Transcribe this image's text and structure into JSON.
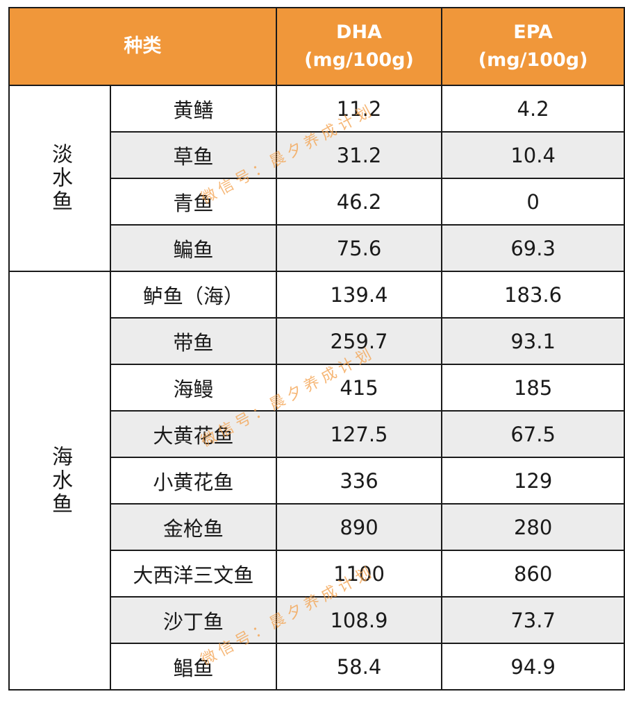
{
  "header": {
    "category": "种类",
    "dha_line1": "DHA",
    "dha_line2": "(mg/100g)",
    "epa_line1": "EPA",
    "epa_line2": "(mg/100g)"
  },
  "groups": {
    "freshwater": "淡水鱼",
    "saltwater": "海水鱼"
  },
  "rows": [
    {
      "name": "黄鳝",
      "dha": "11.2",
      "epa": "4.2"
    },
    {
      "name": "草鱼",
      "dha": "31.2",
      "epa": "10.4"
    },
    {
      "name": "青鱼",
      "dha": "46.2",
      "epa": "0"
    },
    {
      "name": "鳊鱼",
      "dha": "75.6",
      "epa": "69.3"
    },
    {
      "name": "鲈鱼（海）",
      "dha": "139.4",
      "epa": "183.6"
    },
    {
      "name": "带鱼",
      "dha": "259.7",
      "epa": "93.1"
    },
    {
      "name": "海鳗",
      "dha": "415",
      "epa": "185"
    },
    {
      "name": "大黄花鱼",
      "dha": "127.5",
      "epa": "67.5"
    },
    {
      "name": "小黄花鱼",
      "dha": "336",
      "epa": "129"
    },
    {
      "name": "金枪鱼",
      "dha": "890",
      "epa": "280"
    },
    {
      "name": "大西洋三文鱼",
      "dha": "1100",
      "epa": "860"
    },
    {
      "name": "沙丁鱼",
      "dha": "108.9",
      "epa": "73.7"
    },
    {
      "name": "鲳鱼",
      "dha": "58.4",
      "epa": "94.9"
    }
  ],
  "watermark": "微信号：晨夕养成计划",
  "colors": {
    "header_bg": "#f0973a",
    "alt_row_bg": "#ececec",
    "watermark": "#f4a04a"
  }
}
